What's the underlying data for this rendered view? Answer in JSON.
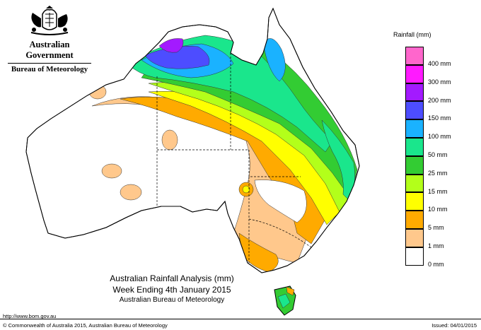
{
  "header": {
    "org": "Australian Government",
    "agency": "Bureau of Meteorology"
  },
  "title": {
    "line1": "Australian Rainfall Analysis (mm)",
    "line2": "Week Ending 4th January 2015",
    "line3": "Australian Bureau of Meteorology"
  },
  "legend": {
    "title": "Rainfall (mm)",
    "items": [
      {
        "label": "400 mm",
        "color": "#ff66cc"
      },
      {
        "label": "300 mm",
        "color": "#ff1aff"
      },
      {
        "label": "200 mm",
        "color": "#a31aff"
      },
      {
        "label": "150 mm",
        "color": "#4d4dff"
      },
      {
        "label": "100 mm",
        "color": "#1ab2ff"
      },
      {
        "label": "50 mm",
        "color": "#1ae68c"
      },
      {
        "label": "25 mm",
        "color": "#33cc33"
      },
      {
        "label": "15 mm",
        "color": "#b3ff1a"
      },
      {
        "label": "10 mm",
        "color": "#ffff00"
      },
      {
        "label": "5 mm",
        "color": "#ffaa00"
      },
      {
        "label": "1 mm",
        "color": "#ffc88c"
      },
      {
        "label": "0 mm",
        "color": "#ffffff"
      }
    ]
  },
  "footer": {
    "url": "http://www.bom.gov.au",
    "copyright": "© Commonwealth of Australia 2015, Australian Bureau of Meteorology",
    "issued": "Issued: 04/01/2015"
  }
}
